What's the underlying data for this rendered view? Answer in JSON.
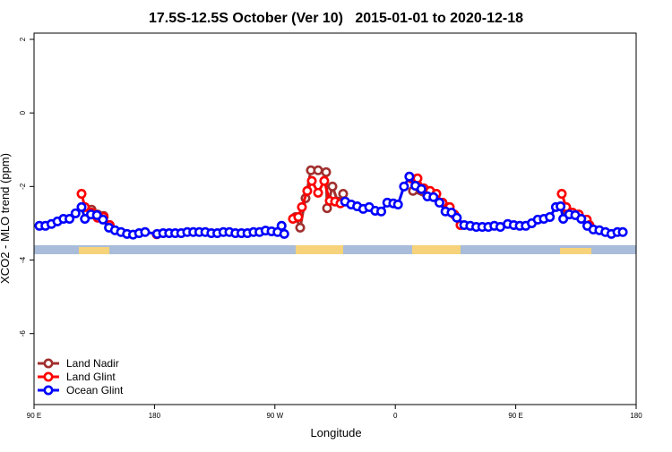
{
  "chart_data": {
    "type": "line",
    "title": "17.5S-12.5S October (Ver 10)   2015-01-01 to 2020-12-18",
    "xlabel": "Longitude",
    "ylabel": "XCO2 - MLO trend (ppm)",
    "xlim": [
      90,
      540
    ],
    "ylim": [
      -7.93,
      2.17
    ],
    "xticks": [
      {
        "value": 90,
        "label": "90 E"
      },
      {
        "value": 180,
        "label": "180"
      },
      {
        "value": 270,
        "label": "90 W"
      },
      {
        "value": 360,
        "label": "0"
      },
      {
        "value": 450,
        "label": "90 E"
      },
      {
        "value": 540,
        "label": "180"
      }
    ],
    "yticks": [
      -6,
      -4,
      -2,
      0,
      2
    ],
    "legend": "bottomleft",
    "series": [
      {
        "name": "Land Nadir",
        "color": "#a0302e",
        "x": [
          133,
          137.5,
          142,
          146.5,
          200,
          285.5,
          288.9,
          292.9,
          296.9,
          302.3,
          308.3,
          309,
          313,
          317,
          321,
          340,
          373.2,
          400,
          450,
          487.7,
          492.4,
          497.1
        ],
        "values": [
          -2.63,
          -2.76,
          -2.8,
          -3.05,
          null,
          -2.83,
          -3.12,
          -2.32,
          -1.56,
          -1.56,
          -1.61,
          -2.59,
          -2.0,
          -2.41,
          -2.2,
          null,
          -2.12,
          -2.56,
          null,
          -2.63,
          -2.73,
          -2.78
        ]
      },
      {
        "name": "Land Glint",
        "color": "#ff0000",
        "x": [
          125.5,
          128,
          133,
          137.5,
          142,
          146.5,
          160,
          181.7,
          250,
          283.5,
          287.5,
          290.2,
          294.2,
          297.6,
          302.3,
          306.9,
          311,
          315,
          319,
          340,
          371.9,
          376.6,
          381.3,
          386,
          390.7,
          395.3,
          400.7,
          404,
          408.7,
          450,
          484.4,
          487.7,
          492.4,
          497.1,
          503.1,
          505.1
        ],
        "values": [
          -2.2,
          -2.56,
          -2.71,
          -2.85,
          -2.83,
          -3.05,
          null,
          -3.3,
          null,
          -2.88,
          -2.83,
          -2.56,
          -2.12,
          -1.85,
          -2.17,
          -1.85,
          -2.39,
          -2.41,
          -2.46,
          null,
          -1.78,
          -1.78,
          -2.05,
          -2.12,
          -2.2,
          -2.44,
          -2.56,
          -2.76,
          -3.05,
          null,
          -2.2,
          -2.56,
          -2.71,
          -2.76,
          -2.9,
          -3.05
        ]
      },
      {
        "name": "Ocean Glint",
        "color": "#0000ff",
        "x": [
          94,
          98.5,
          103,
          107.5,
          112,
          116.5,
          121,
          125.5,
          128,
          132.5,
          137,
          141.5,
          146,
          150.5,
          155,
          159.5,
          164,
          168.5,
          173,
          182,
          186.5,
          191,
          195.5,
          200,
          204.5,
          209,
          213.5,
          218,
          222.5,
          227,
          231.5,
          236,
          240.5,
          245,
          249.5,
          254,
          258.5,
          263,
          267.5,
          272,
          275,
          277,
          300,
          322.5,
          327,
          331.5,
          336,
          340.5,
          345,
          349.5,
          354,
          358.5,
          362,
          366.5,
          370.5,
          375,
          379.5,
          384,
          388.5,
          393,
          397.5,
          402,
          406,
          411.5,
          416,
          420.5,
          425,
          429.5,
          434,
          438.5,
          444,
          448.5,
          453,
          457.5,
          462,
          466.5,
          471,
          475.5,
          480,
          483.5,
          485.5,
          490,
          494.5,
          499,
          503.5,
          508,
          512.5,
          517,
          521.5,
          526,
          530
        ],
        "values": [
          -3.07,
          -3.07,
          -3.02,
          -2.95,
          -2.88,
          -2.88,
          -2.73,
          -2.56,
          -2.88,
          -2.76,
          -2.78,
          -2.9,
          -3.12,
          -3.19,
          -3.24,
          -3.29,
          -3.31,
          -3.27,
          -3.24,
          -3.29,
          -3.27,
          -3.27,
          -3.27,
          -3.27,
          -3.24,
          -3.24,
          -3.24,
          -3.24,
          -3.27,
          -3.27,
          -3.24,
          -3.24,
          -3.27,
          -3.27,
          -3.27,
          -3.24,
          -3.24,
          -3.2,
          -3.22,
          -3.24,
          -3.07,
          -3.29,
          null,
          -2.41,
          -2.49,
          -2.54,
          -2.61,
          -2.56,
          -2.66,
          -2.68,
          -2.44,
          -2.46,
          -2.49,
          -2.0,
          -1.73,
          -1.98,
          -2.07,
          -2.27,
          -2.29,
          -2.44,
          -2.68,
          -2.71,
          -2.85,
          -3.05,
          -3.07,
          -3.1,
          -3.1,
          -3.1,
          -3.07,
          -3.1,
          -3.02,
          -3.05,
          -3.07,
          -3.07,
          -3.0,
          -2.9,
          -2.88,
          -2.83,
          -2.56,
          -2.54,
          -2.88,
          -2.76,
          -2.78,
          -2.88,
          -3.07,
          -3.17,
          -3.19,
          -3.24,
          -3.29,
          -3.24,
          -3.24
        ]
      }
    ]
  }
}
